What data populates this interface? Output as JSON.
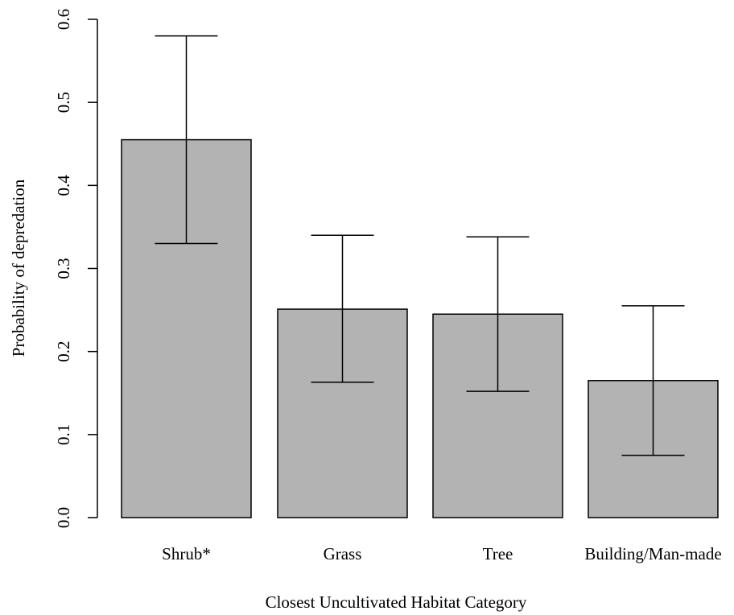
{
  "chart_data": {
    "type": "bar",
    "title": "",
    "xlabel": "Closest Uncultivated Habitat Category",
    "ylabel": "Probability of depredation",
    "categories": [
      "Shrub*",
      "Grass",
      "Tree",
      "Building/Man-made"
    ],
    "values": [
      0.455,
      0.251,
      0.245,
      0.165
    ],
    "error_lower": [
      0.33,
      0.163,
      0.152,
      0.075
    ],
    "error_upper": [
      0.58,
      0.34,
      0.338,
      0.255
    ],
    "ylim": [
      0,
      0.6
    ],
    "yticks": [
      0,
      0.1,
      0.2,
      0.3,
      0.4,
      0.5,
      0.6
    ],
    "ytick_labels": [
      "0.0",
      "0.1",
      "0.2",
      "0.3",
      "0.4",
      "0.5",
      "0.6"
    ],
    "bar_color": "#b3b3b3",
    "grid": false,
    "legend": "none"
  }
}
